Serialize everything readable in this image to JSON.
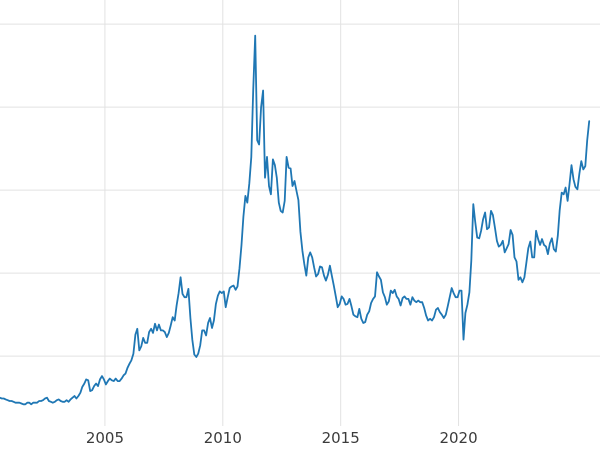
{
  "chart_data": {
    "type": "line",
    "title": "",
    "xlabel": "",
    "ylabel": "",
    "series_name": "silver-price-usd-per-oz",
    "line_color": "#1f77b4",
    "grid_color": "#e2e2e2",
    "background_color": "#ffffff",
    "tick_label_color": "#3b3b3b",
    "x_start_year": 2000,
    "x_start_month": 7,
    "x_interval_months": 1,
    "xlim": [
      2000.55,
      2026.0
    ],
    "ylim": [
      -1.3,
      52.9
    ],
    "x_ticks": [
      2005,
      2010,
      2015,
      2020
    ],
    "x_tick_labels": [
      "2005",
      "2010",
      "2015",
      "2020"
    ],
    "y_gridlines": [
      10,
      20,
      30,
      40,
      50
    ],
    "legend": "none",
    "grid": "on",
    "values": [
      5.0,
      4.9,
      4.9,
      4.8,
      4.7,
      4.6,
      4.6,
      4.5,
      4.4,
      4.4,
      4.4,
      4.3,
      4.2,
      4.2,
      4.4,
      4.4,
      4.2,
      4.4,
      4.4,
      4.4,
      4.6,
      4.6,
      4.7,
      4.9,
      5.0,
      4.6,
      4.5,
      4.4,
      4.5,
      4.7,
      4.8,
      4.6,
      4.5,
      4.5,
      4.7,
      4.5,
      4.8,
      5.0,
      5.2,
      4.9,
      5.2,
      5.6,
      6.3,
      6.7,
      7.2,
      7.1,
      5.8,
      5.9,
      6.4,
      6.7,
      6.4,
      7.2,
      7.6,
      7.2,
      6.6,
      7.0,
      7.3,
      7.1,
      7.0,
      7.3,
      7.0,
      7.0,
      7.3,
      7.7,
      7.9,
      8.6,
      9.1,
      9.5,
      10.3,
      12.6,
      13.3,
      10.7,
      11.2,
      12.2,
      11.6,
      11.6,
      12.9,
      13.3,
      12.8,
      13.9,
      13.1,
      13.8,
      13.1,
      13.1,
      12.9,
      12.3,
      12.8,
      13.7,
      14.7,
      14.3,
      16.1,
      17.6,
      19.5,
      17.5,
      17.1,
      17.1,
      18.1,
      14.6,
      12.0,
      10.2,
      9.9,
      10.3,
      11.3,
      13.1,
      13.1,
      12.5,
      14.0,
      14.6,
      13.4,
      14.3,
      16.3,
      17.3,
      17.8,
      17.6,
      17.8,
      15.9,
      17.1,
      18.2,
      18.4,
      18.5,
      18.0,
      18.4,
      20.6,
      23.4,
      26.8,
      29.3,
      28.5,
      30.8,
      34.0,
      42.0,
      48.6,
      36.0,
      35.5,
      40.0,
      42.0,
      31.5,
      34.0,
      30.5,
      29.5,
      33.7,
      33.0,
      31.5,
      28.5,
      27.5,
      27.3,
      28.7,
      34.0,
      32.7,
      32.6,
      30.5,
      31.1,
      29.9,
      28.8,
      25.0,
      22.7,
      21.1,
      19.7,
      21.9,
      22.5,
      21.9,
      20.7,
      19.6,
      19.9,
      20.8,
      20.7,
      19.7,
      19.1,
      19.8,
      20.9,
      19.7,
      18.5,
      17.2,
      15.9,
      16.3,
      17.2,
      16.9,
      16.2,
      16.3,
      16.9,
      16.0,
      15.0,
      14.8,
      14.7,
      15.7,
      14.5,
      14.0,
      14.1,
      15.0,
      15.4,
      16.4,
      16.9,
      17.2,
      20.1,
      19.6,
      19.2,
      17.7,
      17.1,
      16.2,
      16.6,
      17.9,
      17.6,
      18.0,
      17.2,
      16.9,
      16.1,
      17.0,
      17.2,
      16.9,
      16.9,
      16.2,
      17.1,
      16.7,
      16.5,
      16.7,
      16.5,
      16.5,
      15.8,
      14.9,
      14.3,
      14.5,
      14.3,
      14.7,
      15.6,
      15.8,
      15.3,
      15.0,
      14.6,
      15.0,
      16.0,
      17.1,
      18.2,
      17.6,
      17.1,
      17.1,
      17.9,
      17.9,
      12.0,
      15.2,
      16.2,
      17.7,
      21.5,
      28.3,
      26.2,
      24.3,
      24.2,
      25.1,
      26.5,
      27.3,
      25.3,
      25.5,
      27.5,
      27.0,
      25.5,
      23.9,
      23.2,
      23.4,
      23.9,
      22.5,
      23.0,
      23.5,
      25.2,
      24.6,
      21.9,
      21.4,
      19.2,
      19.5,
      18.9,
      19.5,
      21.2,
      23.0,
      23.8,
      21.9,
      21.9,
      25.1,
      24.1,
      23.4,
      24.1,
      23.4,
      23.2,
      22.3,
      23.6,
      24.2,
      22.9,
      22.6,
      24.5,
      27.6,
      29.7,
      29.5,
      30.3,
      28.7,
      30.7,
      33.0,
      31.3,
      30.4,
      30.1,
      32.0,
      33.5,
      32.5,
      32.9,
      36.0,
      38.3
    ]
  }
}
